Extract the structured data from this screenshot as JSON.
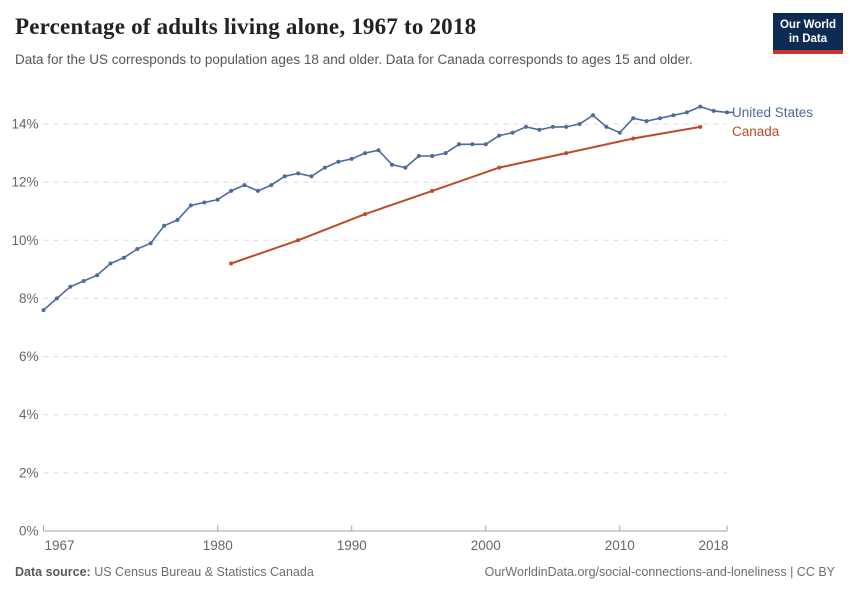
{
  "header": {
    "title": "Percentage of adults living alone, 1967 to 2018",
    "subtitle": "Data for the US corresponds to population ages 18 and older. Data for Canada corresponds to ages 15 and older.",
    "logo": {
      "line1": "Our World",
      "line2": "in Data",
      "bg_color": "#0d2c54",
      "bar_color": "#cc342f"
    }
  },
  "chart_data": {
    "type": "line",
    "title": "Percentage of adults living alone, 1967 to 2018",
    "xlabel": "",
    "ylabel": "",
    "xlim": [
      1967,
      2018
    ],
    "ylim": [
      0,
      14
    ],
    "x_ticks": [
      1967,
      1980,
      1990,
      2000,
      2010,
      2018
    ],
    "y_ticks": [
      0,
      2,
      4,
      6,
      8,
      10,
      12,
      14
    ],
    "y_tick_suffix": "%",
    "grid": "dashed-horizontal",
    "legend_position": "right-of-line-ends",
    "colors": {
      "grid": "#dcdcdc",
      "axis": "#a1a1a1",
      "tick_text": "#666666"
    },
    "series": [
      {
        "name": "United States",
        "color": "#4C6A9C",
        "x": [
          1967,
          1968,
          1969,
          1970,
          1971,
          1972,
          1973,
          1974,
          1975,
          1976,
          1977,
          1978,
          1979,
          1980,
          1981,
          1982,
          1983,
          1984,
          1985,
          1986,
          1987,
          1988,
          1989,
          1990,
          1991,
          1992,
          1993,
          1994,
          1995,
          1996,
          1997,
          1998,
          1999,
          2000,
          2001,
          2002,
          2003,
          2004,
          2005,
          2006,
          2007,
          2008,
          2009,
          2010,
          2011,
          2012,
          2013,
          2014,
          2015,
          2016,
          2017,
          2018
        ],
        "values": [
          7.6,
          8.0,
          8.4,
          8.6,
          8.8,
          9.2,
          9.4,
          9.7,
          9.9,
          10.5,
          10.7,
          11.2,
          11.3,
          11.4,
          11.7,
          11.9,
          11.7,
          11.9,
          12.2,
          12.3,
          12.2,
          12.5,
          12.7,
          12.8,
          13.0,
          13.1,
          12.6,
          12.5,
          12.9,
          12.9,
          13.0,
          13.3,
          13.3,
          13.3,
          13.6,
          13.7,
          13.9,
          13.8,
          13.9,
          13.9,
          14.0,
          14.3,
          13.9,
          13.7,
          14.2,
          14.1,
          14.2,
          14.3,
          14.4,
          14.6,
          14.45,
          14.4
        ]
      },
      {
        "name": "Canada",
        "color": "#BE4B28",
        "x": [
          1981,
          1986,
          1991,
          1996,
          2001,
          2006,
          2011,
          2016
        ],
        "values": [
          9.2,
          10.0,
          10.9,
          11.7,
          12.5,
          13.0,
          13.5,
          13.9
        ]
      }
    ]
  },
  "footer": {
    "source_label": "Data source:",
    "source_value": "US Census Bureau & Statistics Canada",
    "link_text": "OurWorldinData.org/social-connections-and-loneliness | CC BY"
  }
}
